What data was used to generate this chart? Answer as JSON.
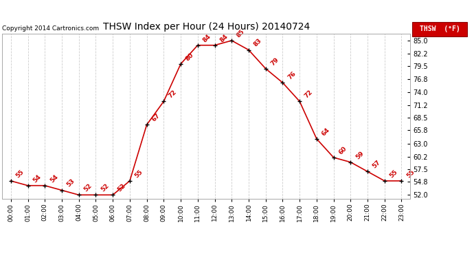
{
  "title": "THSW Index per Hour (24 Hours) 20140724",
  "copyright": "Copyright 2014 Cartronics.com",
  "legend_label": "THSW  (°F)",
  "hours": [
    0,
    1,
    2,
    3,
    4,
    5,
    6,
    7,
    8,
    9,
    10,
    11,
    12,
    13,
    14,
    15,
    16,
    17,
    18,
    19,
    20,
    21,
    22,
    23
  ],
  "values": [
    55,
    54,
    54,
    53,
    52,
    52,
    52,
    55,
    67,
    72,
    80,
    84,
    84,
    85,
    83,
    79,
    76,
    72,
    64,
    60,
    59,
    57,
    55,
    55
  ],
  "xlabels": [
    "00:00",
    "01:00",
    "02:00",
    "03:00",
    "04:00",
    "05:00",
    "06:00",
    "07:00",
    "08:00",
    "09:00",
    "10:00",
    "11:00",
    "12:00",
    "13:00",
    "14:00",
    "15:00",
    "16:00",
    "17:00",
    "18:00",
    "19:00",
    "20:00",
    "21:00",
    "22:00",
    "23:00"
  ],
  "yticks": [
    52.0,
    54.8,
    57.5,
    60.2,
    63.0,
    65.8,
    68.5,
    71.2,
    74.0,
    76.8,
    79.5,
    82.2,
    85.0
  ],
  "ylim": [
    51.2,
    86.5
  ],
  "line_color": "#cc0000",
  "marker_color": "#000000",
  "bg_color": "#ffffff",
  "grid_color": "#cccccc",
  "title_color": "#000000",
  "label_color": "#cc0000",
  "legend_bg": "#cc0000",
  "legend_text_color": "#ffffff"
}
